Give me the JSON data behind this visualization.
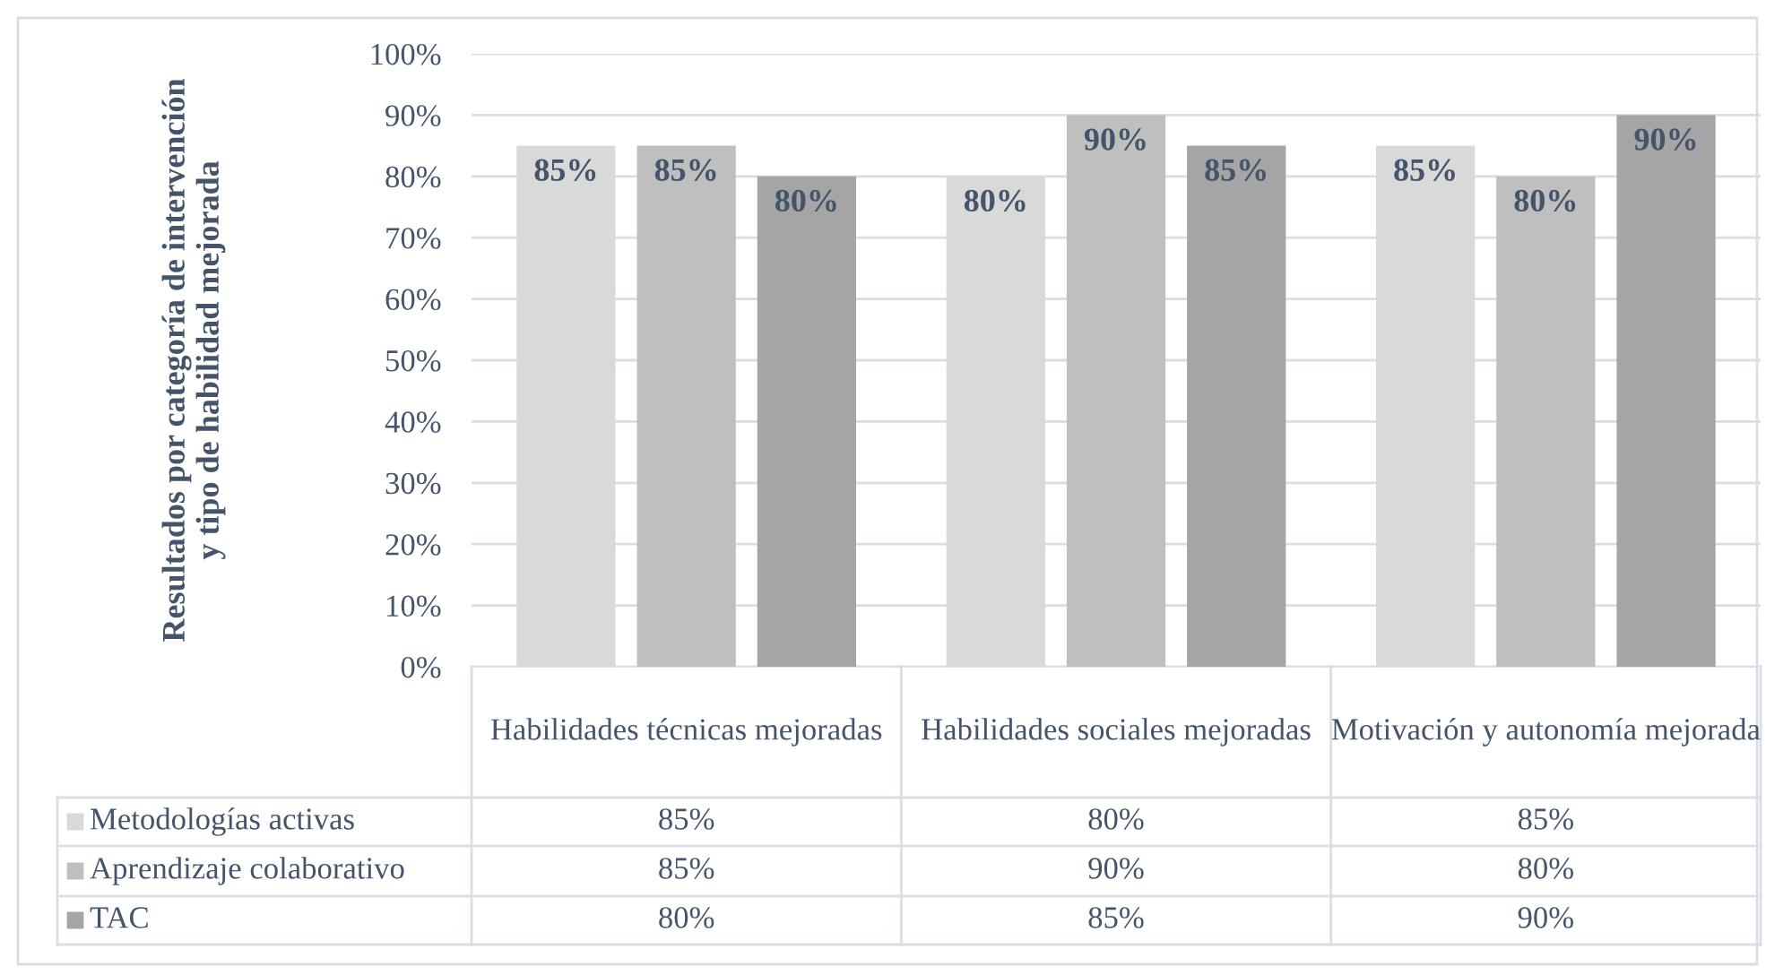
{
  "chart_data": {
    "type": "bar",
    "ylabel": "Resultados por categoría de intervención\ny tipo de habilidad mejorada",
    "categories": [
      "Habilidades técnicas mejoradas",
      "Habilidades sociales mejoradas",
      "Motivación y autonomía mejorada"
    ],
    "series": [
      {
        "name": "Metodologías activas",
        "color": "#d9d9d9",
        "values": [
          85,
          80,
          85
        ],
        "value_labels": [
          "85%",
          "80%",
          "85%"
        ]
      },
      {
        "name": "Aprendizaje colaborativo",
        "color": "#bfbfbf",
        "values": [
          85,
          90,
          80
        ],
        "value_labels": [
          "85%",
          "90%",
          "80%"
        ]
      },
      {
        "name": "TAC",
        "color": "#a5a5a5",
        "values": [
          80,
          85,
          90
        ],
        "value_labels": [
          "80%",
          "85%",
          "90%"
        ]
      }
    ],
    "ylim": [
      0,
      100
    ],
    "yticks": [
      {
        "value": 0,
        "label": "0%"
      },
      {
        "value": 10,
        "label": "10%"
      },
      {
        "value": 20,
        "label": "20%"
      },
      {
        "value": 30,
        "label": "30%"
      },
      {
        "value": 40,
        "label": "40%"
      },
      {
        "value": 50,
        "label": "50%"
      },
      {
        "value": 60,
        "label": "60%"
      },
      {
        "value": 70,
        "label": "70%"
      },
      {
        "value": 80,
        "label": "80%"
      },
      {
        "value": 90,
        "label": "90%"
      },
      {
        "value": 100,
        "label": "100%"
      }
    ],
    "grid": "y",
    "legend": "bottom"
  }
}
